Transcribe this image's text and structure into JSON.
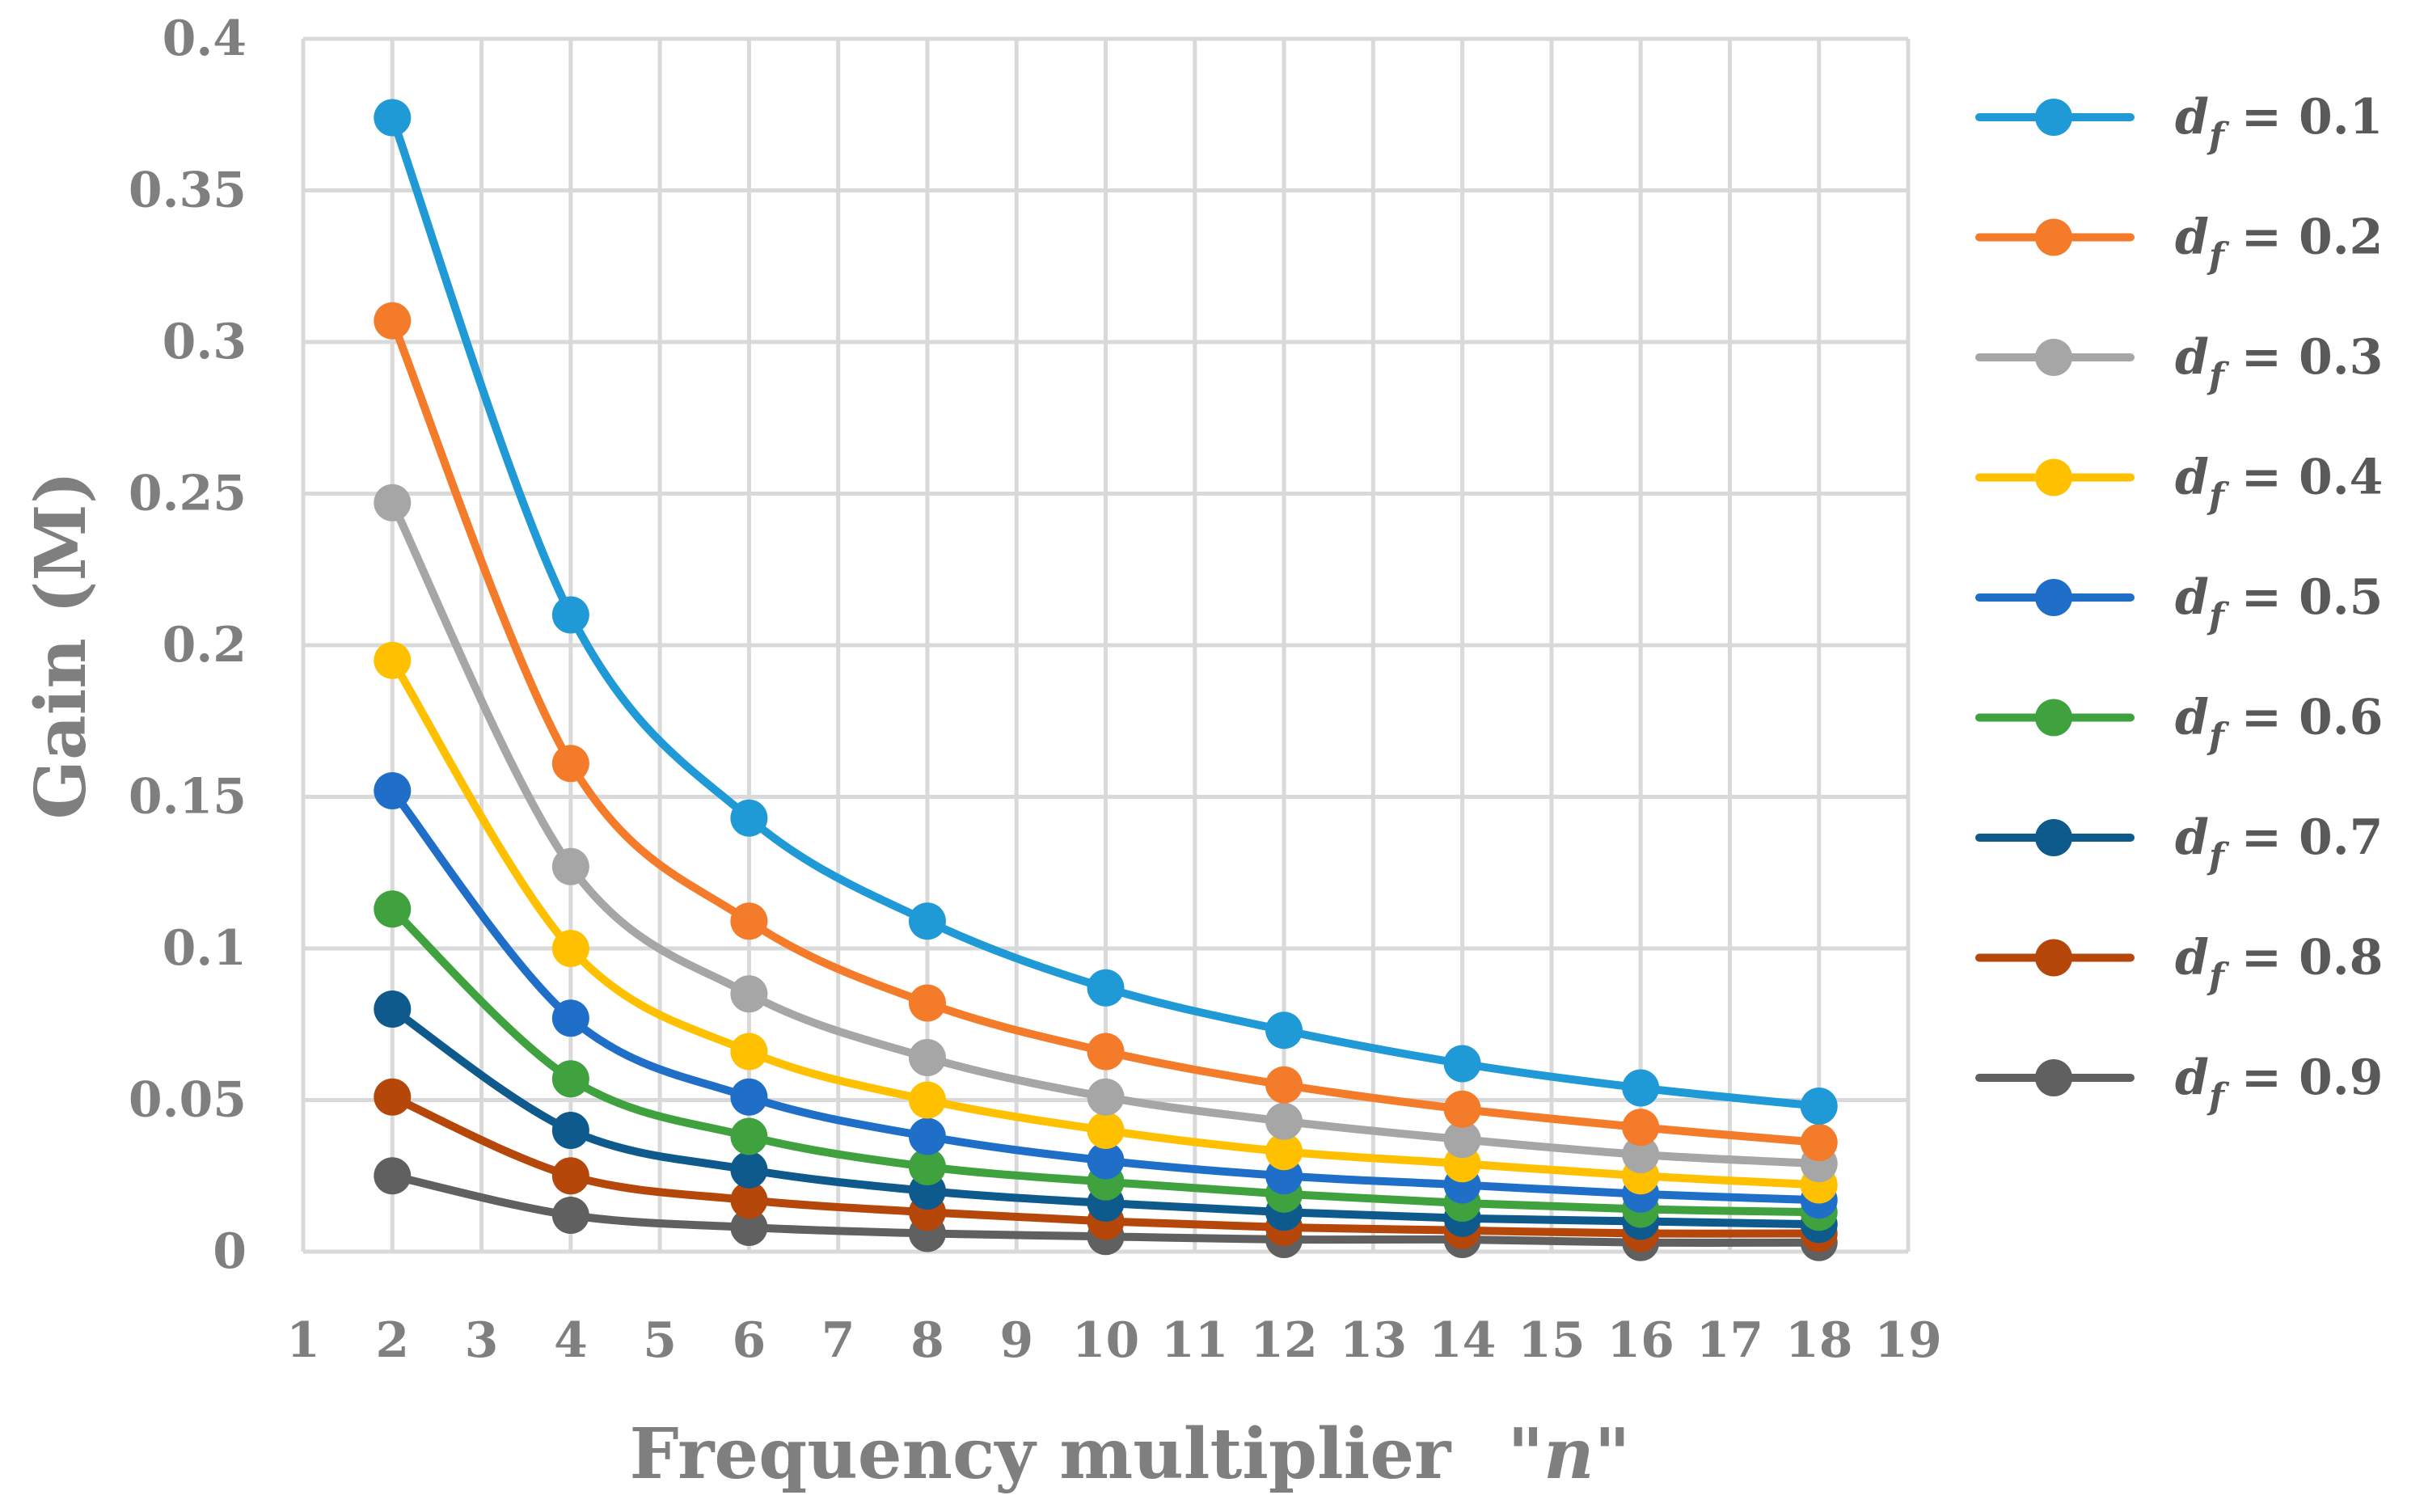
{
  "chart_data": {
    "type": "line",
    "title": "",
    "xlabel": "Frequency multiplier",
    "xlabel_var": "\"n\"",
    "ylabel": "Gain (M)",
    "xlim": [
      1,
      19
    ],
    "ylim": [
      0,
      0.4
    ],
    "x_ticks": [
      "1",
      "2",
      "3",
      "4",
      "5",
      "6",
      "7",
      "8",
      "9",
      "10",
      "11",
      "12",
      "13",
      "14",
      "15",
      "16",
      "17",
      "18",
      "19"
    ],
    "y_ticks": [
      "0",
      "0.05",
      "0.1",
      "0.15",
      "0.2",
      "0.25",
      "0.3",
      "0.35",
      "0.4"
    ],
    "grid": true,
    "legend_position": "right",
    "x": [
      2,
      4,
      6,
      8,
      10,
      12,
      14,
      16,
      18
    ],
    "series": [
      {
        "name": "d_f = 0.1",
        "var": "d",
        "sub": "f",
        "rest": " = 0.1",
        "color": "#1f9ad6",
        "values": [
          0.374,
          0.21,
          0.143,
          0.109,
          0.087,
          0.073,
          0.062,
          0.054,
          0.048
        ]
      },
      {
        "name": "d_f = 0.2",
        "var": "d",
        "sub": "f",
        "rest": " = 0.2",
        "color": "#f47b2a",
        "values": [
          0.307,
          0.161,
          0.109,
          0.082,
          0.066,
          0.055,
          0.047,
          0.041,
          0.036
        ]
      },
      {
        "name": "d_f = 0.3",
        "var": "d",
        "sub": "f",
        "rest": " = 0.3",
        "color": "#a6a6a6",
        "values": [
          0.247,
          0.127,
          0.085,
          0.064,
          0.051,
          0.043,
          0.037,
          0.032,
          0.029
        ]
      },
      {
        "name": "d_f = 0.4",
        "var": "d",
        "sub": "f",
        "rest": " = 0.4",
        "color": "#ffc000",
        "values": [
          0.195,
          0.1,
          0.066,
          0.05,
          0.04,
          0.033,
          0.029,
          0.025,
          0.022
        ]
      },
      {
        "name": "d_f = 0.5",
        "var": "d",
        "sub": "f",
        "rest": " = 0.5",
        "color": "#1f6fc9",
        "values": [
          0.152,
          0.077,
          0.051,
          0.038,
          0.03,
          0.025,
          0.022,
          0.019,
          0.017
        ]
      },
      {
        "name": "d_f = 0.6",
        "var": "d",
        "sub": "f",
        "rest": " = 0.6",
        "color": "#3fa23f",
        "values": [
          0.113,
          0.057,
          0.038,
          0.028,
          0.023,
          0.019,
          0.016,
          0.014,
          0.013
        ]
      },
      {
        "name": "d_f = 0.7",
        "var": "d",
        "sub": "f",
        "rest": " = 0.7",
        "color": "#0e5a8c",
        "values": [
          0.08,
          0.04,
          0.027,
          0.02,
          0.016,
          0.013,
          0.011,
          0.01,
          0.009
        ]
      },
      {
        "name": "d_f = 0.8",
        "var": "d",
        "sub": "f",
        "rest": " = 0.8",
        "color": "#b5470b",
        "values": [
          0.051,
          0.025,
          0.017,
          0.013,
          0.01,
          0.008,
          0.007,
          0.006,
          0.006
        ]
      },
      {
        "name": "d_f = 0.9",
        "var": "d",
        "sub": "f",
        "rest": " = 0.9",
        "color": "#606060",
        "values": [
          0.025,
          0.012,
          0.008,
          0.006,
          0.005,
          0.004,
          0.004,
          0.003,
          0.003
        ]
      }
    ]
  }
}
